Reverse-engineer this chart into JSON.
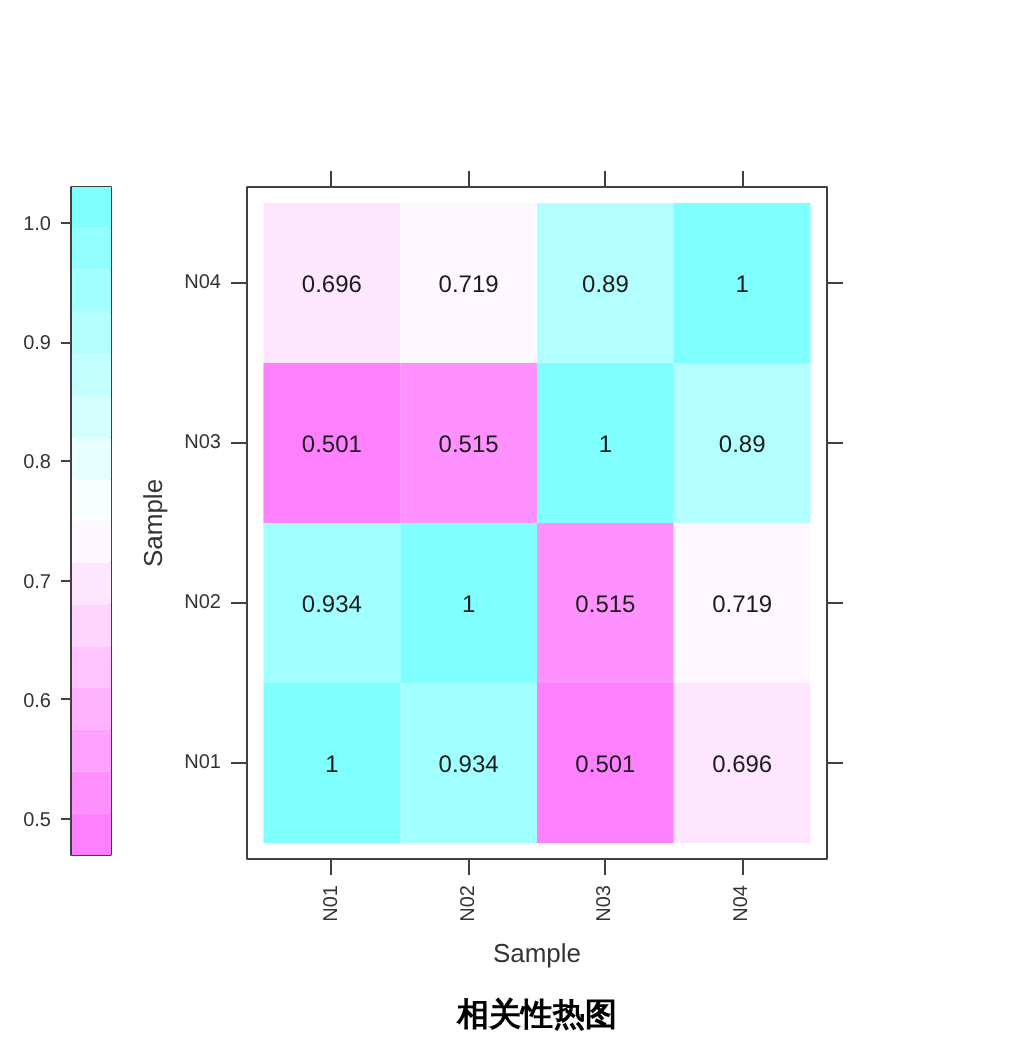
{
  "chart_data": {
    "type": "heatmap",
    "title": "相关性热图",
    "xlabel": "Sample",
    "ylabel": "Sample",
    "categories": [
      "N01",
      "N02",
      "N03",
      "N04"
    ],
    "y_categories": [
      "N04",
      "N03",
      "N02",
      "N01"
    ],
    "cells": [
      [
        0.696,
        0.719,
        0.89,
        1
      ],
      [
        0.501,
        0.515,
        1,
        0.89
      ],
      [
        0.934,
        1,
        0.515,
        0.719
      ],
      [
        1,
        0.934,
        0.501,
        0.696
      ]
    ],
    "clim": [
      0.47,
      1.03
    ],
    "cticks": [
      0.5,
      0.6,
      0.7,
      0.8,
      0.9,
      {
        "value": 1,
        "label": "1.0"
      }
    ],
    "data_labels": true
  }
}
